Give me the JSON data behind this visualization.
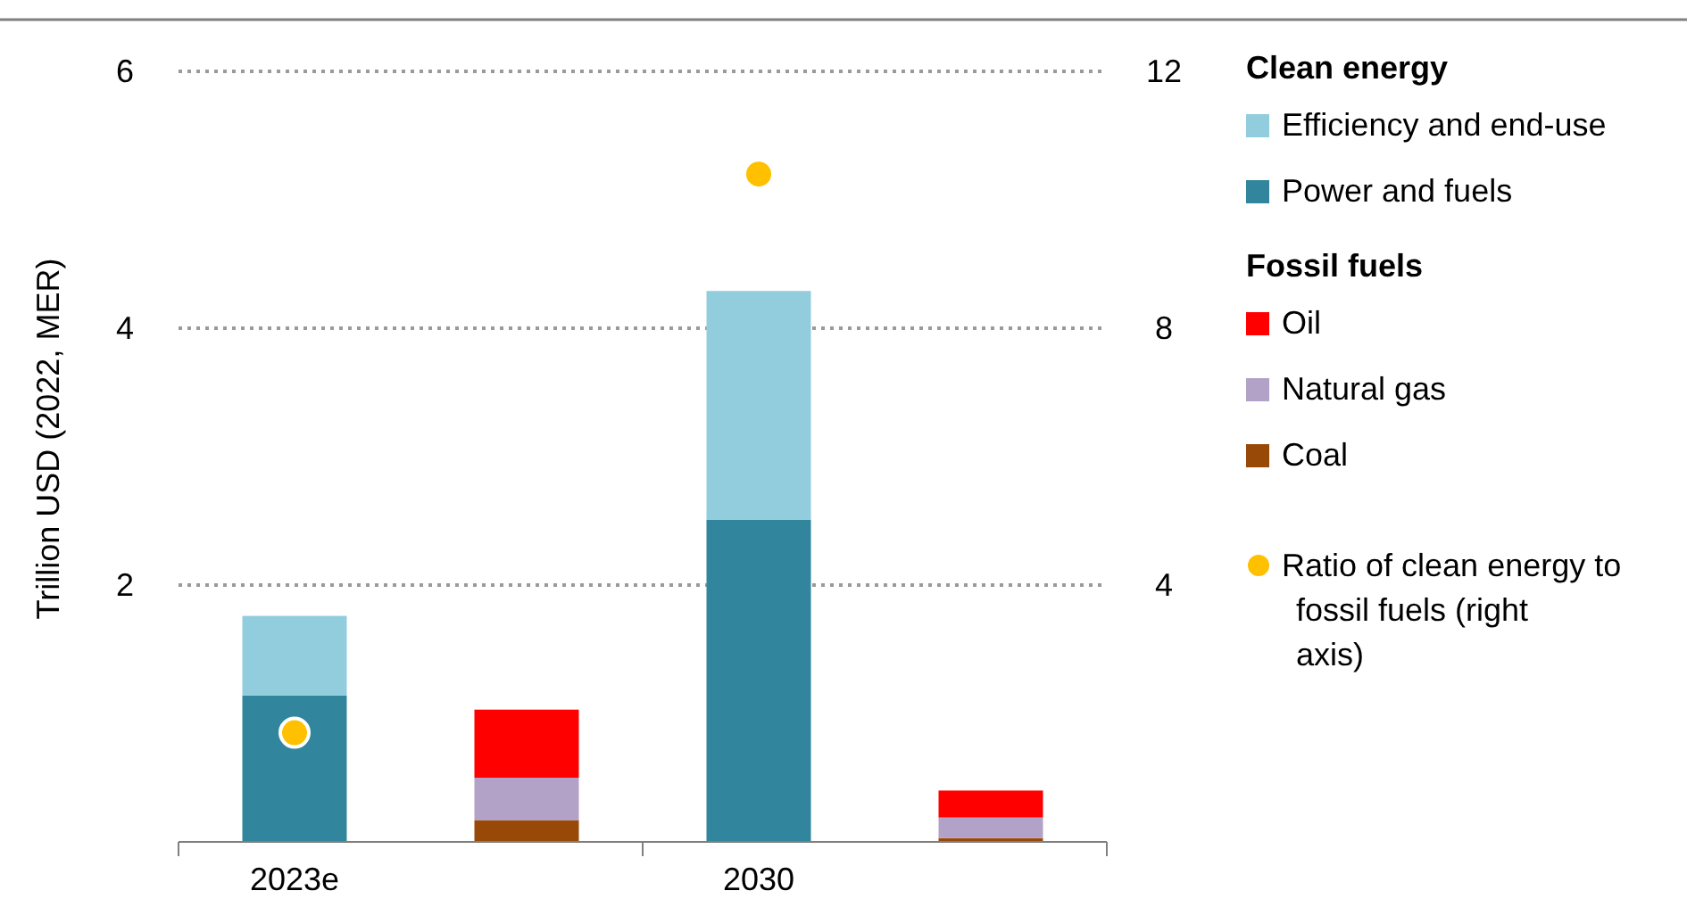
{
  "chart_data": {
    "type": "bar",
    "stacked": true,
    "categories": [
      "2023e",
      null,
      "2030",
      null
    ],
    "ylabel": "Trillion USD (2022, MER)",
    "annotations": [
      "Clean energy",
      "Fossil fuels"
    ],
    "series": [
      {
        "name": "Power and fuels",
        "color": "#31859c",
        "values": [
          1.14,
          null,
          2.51,
          null
        ]
      },
      {
        "name": "Efficiency and end-use",
        "color": "#92cddd",
        "values": [
          0.62,
          null,
          1.78,
          null
        ]
      },
      {
        "name": "Coal",
        "color": "#984807",
        "values": [
          null,
          0.17,
          null,
          0.03
        ]
      },
      {
        "name": "Natural gas",
        "color": "#b3a2c7",
        "values": [
          null,
          0.33,
          null,
          0.16
        ]
      },
      {
        "name": "Oil",
        "color": "#ff0000",
        "values": [
          null,
          0.53,
          null,
          0.21
        ]
      },
      {
        "name": "Ratio of clean energy to fossil fuels (right axis)",
        "type": "scatter",
        "axis": "y2",
        "color": "#ffc000",
        "marker": "circle",
        "values": [
          1.7,
          null,
          10.4,
          null
        ]
      }
    ],
    "ylim": [
      0,
      6
    ],
    "yticks": [
      2,
      4,
      6
    ],
    "y2lim": [
      0,
      12
    ],
    "y2ticks": [
      4,
      8,
      12
    ],
    "grid": "y",
    "legend": "right"
  }
}
